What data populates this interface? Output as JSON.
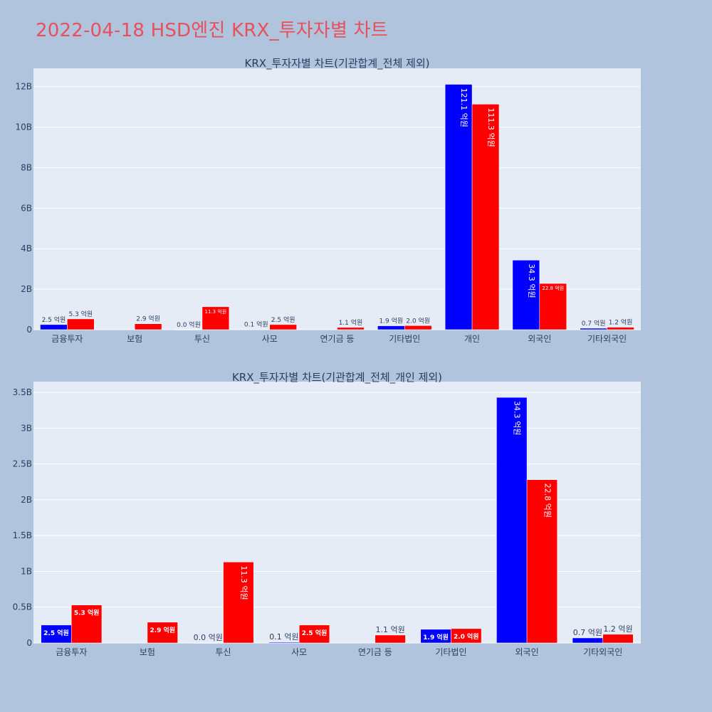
{
  "page_title": "2022-04-18 HSD엔진 KRX_투자자별 차트",
  "colors": {
    "background": "#b0c4de",
    "plot_background": "#e5ecf6",
    "series_a": "#0000ff",
    "series_b": "#ff0000",
    "title": "#e8505b",
    "text": "#2a3f5f"
  },
  "chart_data": [
    {
      "type": "bar",
      "title": "KRX_투자자별 차트(기관합계_전체 제외)",
      "categories": [
        "금융투자",
        "보험",
        "투신",
        "사모",
        "연기금 등",
        "기타법인",
        "개인",
        "외국인",
        "기타외국인"
      ],
      "series": [
        {
          "color": "#0000ff",
          "values": [
            250000000,
            null,
            0,
            10000000,
            null,
            190000000,
            12110000000,
            3430000000,
            70000000
          ],
          "labels": [
            "2.5 억원",
            "",
            "0.0 억원",
            "0.1 억원",
            "",
            "1.9 억원",
            "121.1 억원",
            "34.3 억원",
            "0.7 억원"
          ]
        },
        {
          "color": "#ff0000",
          "values": [
            530000000,
            290000000,
            1130000000,
            250000000,
            110000000,
            200000000,
            11130000000,
            2280000000,
            120000000
          ],
          "labels": [
            "5.3 억원",
            "2.9 억원",
            "11.3 억원",
            "2.5 억원",
            "1.1 억원",
            "2.0 억원",
            "111.3 억원",
            "22.8 억원",
            "1.2 억원"
          ]
        }
      ],
      "ylim": [
        0,
        12900000000
      ],
      "y_ticks": [
        {
          "value": 0,
          "label": "0"
        },
        {
          "value": 2000000000,
          "label": "2B"
        },
        {
          "value": 4000000000,
          "label": "4B"
        },
        {
          "value": 6000000000,
          "label": "6B"
        },
        {
          "value": 8000000000,
          "label": "8B"
        },
        {
          "value": 10000000000,
          "label": "10B"
        },
        {
          "value": 12000000000,
          "label": "12B"
        }
      ],
      "grid": true,
      "legend": "none"
    },
    {
      "type": "bar",
      "title": "KRX_투자자별 차트(기관합계_전체_개인 제외)",
      "categories": [
        "금융투자",
        "보험",
        "투신",
        "사모",
        "연기금 등",
        "기타법인",
        "외국인",
        "기타외국인"
      ],
      "series": [
        {
          "color": "#0000ff",
          "values": [
            250000000,
            null,
            0,
            10000000,
            null,
            190000000,
            3430000000,
            70000000
          ],
          "labels": [
            "2.5 억원",
            "",
            "0.0 억원",
            "0.1 억원",
            "",
            "1.9 억원",
            "34.3 억원",
            "0.7 억원"
          ]
        },
        {
          "color": "#ff0000",
          "values": [
            530000000,
            290000000,
            1130000000,
            250000000,
            110000000,
            200000000,
            2280000000,
            120000000
          ],
          "labels": [
            "5.3 억원",
            "2.9 억원",
            "11.3 억원",
            "2.5 억원",
            "1.1 억원",
            "2.0 억원",
            "22.8 억원",
            "1.2 억원"
          ]
        }
      ],
      "ylim": [
        0,
        3650000000
      ],
      "y_ticks": [
        {
          "value": 0,
          "label": "0"
        },
        {
          "value": 500000000,
          "label": "0.5B"
        },
        {
          "value": 1000000000,
          "label": "1B"
        },
        {
          "value": 1500000000,
          "label": "1.5B"
        },
        {
          "value": 2000000000,
          "label": "2B"
        },
        {
          "value": 2500000000,
          "label": "2.5B"
        },
        {
          "value": 3000000000,
          "label": "3B"
        },
        {
          "value": 3500000000,
          "label": "3.5B"
        }
      ],
      "grid": true,
      "legend": "none"
    }
  ]
}
